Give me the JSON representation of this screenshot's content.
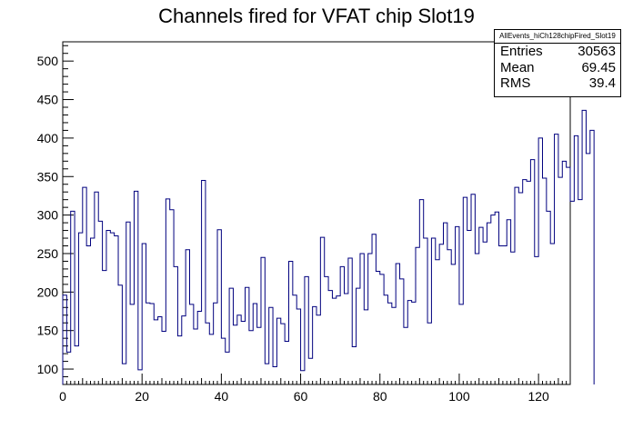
{
  "chart_data": {
    "type": "bar",
    "title": "Channels fired for VFAT chip Slot19",
    "xlabel": "",
    "ylabel": "",
    "xlim": [
      0,
      128
    ],
    "ylim": [
      80,
      525
    ],
    "x_ticks": [
      0,
      20,
      40,
      60,
      80,
      100,
      120
    ],
    "y_ticks": [
      100,
      150,
      200,
      250,
      300,
      350,
      400,
      450,
      500
    ],
    "bin_width": 1,
    "values": [
      196,
      122,
      305,
      130,
      277,
      336,
      260,
      270,
      330,
      292,
      228,
      280,
      277,
      273,
      209,
      107,
      291,
      184,
      331,
      99,
      263,
      186,
      185,
      164,
      168,
      149,
      321,
      307,
      233,
      143,
      169,
      255,
      184,
      152,
      175,
      345,
      160,
      145,
      186,
      281,
      140,
      122,
      205,
      157,
      170,
      162,
      206,
      150,
      185,
      154,
      245,
      107,
      180,
      103,
      166,
      159,
      136,
      240,
      196,
      178,
      98,
      220,
      114,
      181,
      170,
      271,
      220,
      202,
      192,
      195,
      233,
      198,
      244,
      129,
      205,
      250,
      177,
      250,
      275,
      227,
      223,
      196,
      186,
      180,
      237,
      217,
      154,
      189,
      187,
      258,
      320,
      270,
      160,
      270,
      242,
      262,
      290,
      255,
      236,
      285,
      184,
      323,
      280,
      327,
      250,
      284,
      265,
      290,
      300,
      304,
      260,
      260,
      294,
      252,
      336,
      329,
      346,
      344,
      372,
      246,
      400,
      348,
      305,
      263,
      405,
      349,
      370,
      362,
      318,
      403,
      320,
      436,
      380,
      410
    ],
    "stats": {
      "name": "AllEvents_hiCh128chipFired_Slot19",
      "rows": [
        {
          "label": "Entries",
          "value": "30563"
        },
        {
          "label": "Mean",
          "value": "69.45"
        },
        {
          "label": "RMS",
          "value": "39.4"
        }
      ]
    },
    "colors": {
      "line": "#00007f",
      "axis": "#000000"
    }
  }
}
